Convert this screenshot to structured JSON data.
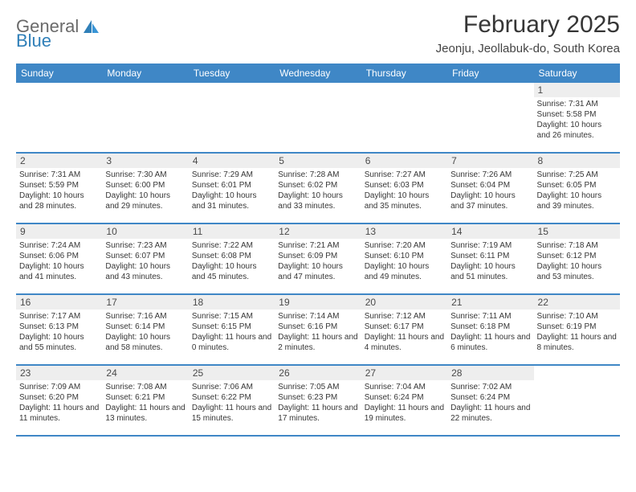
{
  "brand": {
    "word1": "General",
    "word2": "Blue",
    "text_color": "#6a6a6a",
    "accent_color": "#2f7fb8"
  },
  "title": "February 2025",
  "location": "Jeonju, Jeollabuk-do, South Korea",
  "colors": {
    "header_bg": "#3f87c6",
    "header_text": "#ffffff",
    "daynum_bg": "#eeeeee",
    "week_border": "#3f87c6",
    "body_text": "#363636",
    "page_bg": "#ffffff"
  },
  "typography": {
    "title_fontsize": 30,
    "location_fontsize": 15,
    "dow_fontsize": 12,
    "daynum_fontsize": 12,
    "info_fontsize": 10
  },
  "layout": {
    "columns": 7,
    "rows": 5,
    "cell_min_height": 86
  },
  "dow": [
    "Sunday",
    "Monday",
    "Tuesday",
    "Wednesday",
    "Thursday",
    "Friday",
    "Saturday"
  ],
  "weeks": [
    [
      {
        "n": "",
        "sr": "",
        "ss": "",
        "dl": ""
      },
      {
        "n": "",
        "sr": "",
        "ss": "",
        "dl": ""
      },
      {
        "n": "",
        "sr": "",
        "ss": "",
        "dl": ""
      },
      {
        "n": "",
        "sr": "",
        "ss": "",
        "dl": ""
      },
      {
        "n": "",
        "sr": "",
        "ss": "",
        "dl": ""
      },
      {
        "n": "",
        "sr": "",
        "ss": "",
        "dl": ""
      },
      {
        "n": "1",
        "sr": "Sunrise: 7:31 AM",
        "ss": "Sunset: 5:58 PM",
        "dl": "Daylight: 10 hours and 26 minutes."
      }
    ],
    [
      {
        "n": "2",
        "sr": "Sunrise: 7:31 AM",
        "ss": "Sunset: 5:59 PM",
        "dl": "Daylight: 10 hours and 28 minutes."
      },
      {
        "n": "3",
        "sr": "Sunrise: 7:30 AM",
        "ss": "Sunset: 6:00 PM",
        "dl": "Daylight: 10 hours and 29 minutes."
      },
      {
        "n": "4",
        "sr": "Sunrise: 7:29 AM",
        "ss": "Sunset: 6:01 PM",
        "dl": "Daylight: 10 hours and 31 minutes."
      },
      {
        "n": "5",
        "sr": "Sunrise: 7:28 AM",
        "ss": "Sunset: 6:02 PM",
        "dl": "Daylight: 10 hours and 33 minutes."
      },
      {
        "n": "6",
        "sr": "Sunrise: 7:27 AM",
        "ss": "Sunset: 6:03 PM",
        "dl": "Daylight: 10 hours and 35 minutes."
      },
      {
        "n": "7",
        "sr": "Sunrise: 7:26 AM",
        "ss": "Sunset: 6:04 PM",
        "dl": "Daylight: 10 hours and 37 minutes."
      },
      {
        "n": "8",
        "sr": "Sunrise: 7:25 AM",
        "ss": "Sunset: 6:05 PM",
        "dl": "Daylight: 10 hours and 39 minutes."
      }
    ],
    [
      {
        "n": "9",
        "sr": "Sunrise: 7:24 AM",
        "ss": "Sunset: 6:06 PM",
        "dl": "Daylight: 10 hours and 41 minutes."
      },
      {
        "n": "10",
        "sr": "Sunrise: 7:23 AM",
        "ss": "Sunset: 6:07 PM",
        "dl": "Daylight: 10 hours and 43 minutes."
      },
      {
        "n": "11",
        "sr": "Sunrise: 7:22 AM",
        "ss": "Sunset: 6:08 PM",
        "dl": "Daylight: 10 hours and 45 minutes."
      },
      {
        "n": "12",
        "sr": "Sunrise: 7:21 AM",
        "ss": "Sunset: 6:09 PM",
        "dl": "Daylight: 10 hours and 47 minutes."
      },
      {
        "n": "13",
        "sr": "Sunrise: 7:20 AM",
        "ss": "Sunset: 6:10 PM",
        "dl": "Daylight: 10 hours and 49 minutes."
      },
      {
        "n": "14",
        "sr": "Sunrise: 7:19 AM",
        "ss": "Sunset: 6:11 PM",
        "dl": "Daylight: 10 hours and 51 minutes."
      },
      {
        "n": "15",
        "sr": "Sunrise: 7:18 AM",
        "ss": "Sunset: 6:12 PM",
        "dl": "Daylight: 10 hours and 53 minutes."
      }
    ],
    [
      {
        "n": "16",
        "sr": "Sunrise: 7:17 AM",
        "ss": "Sunset: 6:13 PM",
        "dl": "Daylight: 10 hours and 55 minutes."
      },
      {
        "n": "17",
        "sr": "Sunrise: 7:16 AM",
        "ss": "Sunset: 6:14 PM",
        "dl": "Daylight: 10 hours and 58 minutes."
      },
      {
        "n": "18",
        "sr": "Sunrise: 7:15 AM",
        "ss": "Sunset: 6:15 PM",
        "dl": "Daylight: 11 hours and 0 minutes."
      },
      {
        "n": "19",
        "sr": "Sunrise: 7:14 AM",
        "ss": "Sunset: 6:16 PM",
        "dl": "Daylight: 11 hours and 2 minutes."
      },
      {
        "n": "20",
        "sr": "Sunrise: 7:12 AM",
        "ss": "Sunset: 6:17 PM",
        "dl": "Daylight: 11 hours and 4 minutes."
      },
      {
        "n": "21",
        "sr": "Sunrise: 7:11 AM",
        "ss": "Sunset: 6:18 PM",
        "dl": "Daylight: 11 hours and 6 minutes."
      },
      {
        "n": "22",
        "sr": "Sunrise: 7:10 AM",
        "ss": "Sunset: 6:19 PM",
        "dl": "Daylight: 11 hours and 8 minutes."
      }
    ],
    [
      {
        "n": "23",
        "sr": "Sunrise: 7:09 AM",
        "ss": "Sunset: 6:20 PM",
        "dl": "Daylight: 11 hours and 11 minutes."
      },
      {
        "n": "24",
        "sr": "Sunrise: 7:08 AM",
        "ss": "Sunset: 6:21 PM",
        "dl": "Daylight: 11 hours and 13 minutes."
      },
      {
        "n": "25",
        "sr": "Sunrise: 7:06 AM",
        "ss": "Sunset: 6:22 PM",
        "dl": "Daylight: 11 hours and 15 minutes."
      },
      {
        "n": "26",
        "sr": "Sunrise: 7:05 AM",
        "ss": "Sunset: 6:23 PM",
        "dl": "Daylight: 11 hours and 17 minutes."
      },
      {
        "n": "27",
        "sr": "Sunrise: 7:04 AM",
        "ss": "Sunset: 6:24 PM",
        "dl": "Daylight: 11 hours and 19 minutes."
      },
      {
        "n": "28",
        "sr": "Sunrise: 7:02 AM",
        "ss": "Sunset: 6:24 PM",
        "dl": "Daylight: 11 hours and 22 minutes."
      },
      {
        "n": "",
        "sr": "",
        "ss": "",
        "dl": ""
      }
    ]
  ]
}
